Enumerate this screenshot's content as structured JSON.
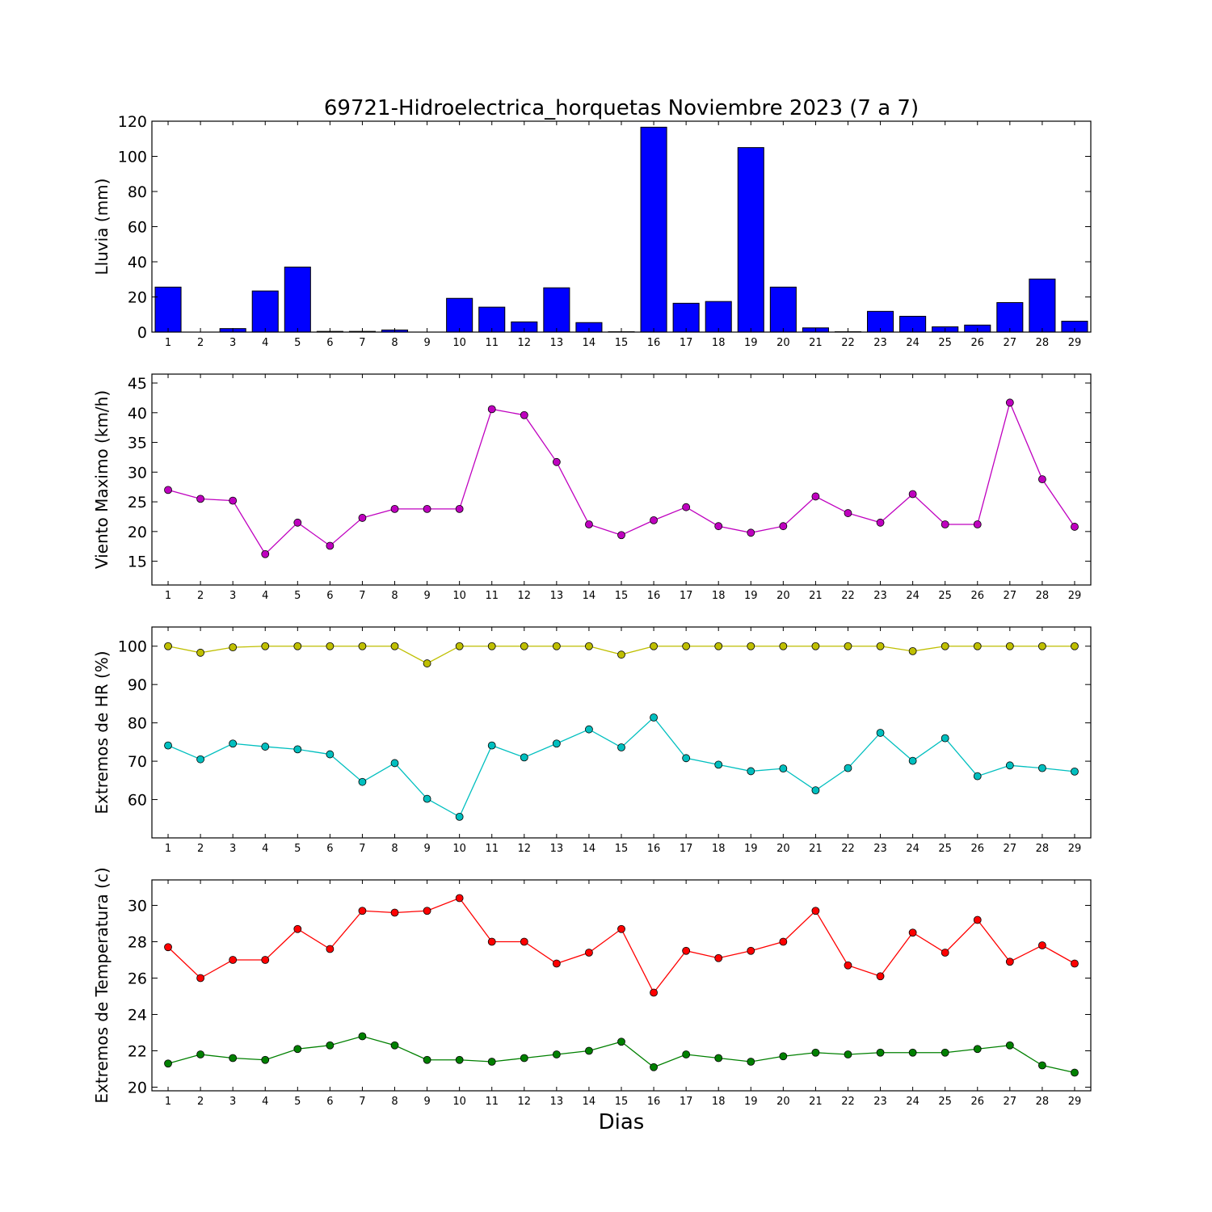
{
  "figure": {
    "title": "69721-Hidroelectrica_horquetas Noviembre 2023  (7 a 7)",
    "xlabel": "Dias"
  },
  "chart_data": [
    {
      "id": "lluvia",
      "type": "bar",
      "ylabel": "Lluvia (mm)",
      "ylim": [
        0,
        120
      ],
      "yticks": [
        0,
        20,
        40,
        60,
        80,
        100,
        120
      ],
      "x": [
        1,
        2,
        3,
        4,
        5,
        6,
        7,
        8,
        9,
        10,
        11,
        12,
        13,
        14,
        15,
        16,
        17,
        18,
        19,
        20,
        21,
        22,
        23,
        24,
        25,
        26,
        27,
        28,
        29
      ],
      "series": [
        {
          "color": "#0000ff",
          "values": [
            25.6,
            0,
            2,
            23.4,
            37,
            0.4,
            0.4,
            1.2,
            0,
            19.2,
            14.2,
            5.8,
            25.2,
            5.4,
            0.2,
            116.6,
            16.4,
            17.4,
            105,
            25.6,
            2.4,
            0.2,
            11.8,
            9,
            3,
            4,
            16.8,
            30.2,
            6.2
          ]
        }
      ]
    },
    {
      "id": "viento",
      "type": "line",
      "ylabel": "Viento Maximo (km/h)",
      "ylim": [
        11,
        46.5
      ],
      "yticks": [
        15,
        20,
        25,
        30,
        35,
        40,
        45
      ],
      "x": [
        1,
        2,
        3,
        4,
        5,
        6,
        7,
        8,
        9,
        10,
        11,
        12,
        13,
        14,
        15,
        16,
        17,
        18,
        19,
        20,
        21,
        22,
        23,
        24,
        25,
        26,
        27,
        28,
        29
      ],
      "series": [
        {
          "color": "#bf00bf",
          "values": [
            27,
            25.5,
            25.2,
            16.2,
            21.5,
            17.6,
            22.3,
            23.8,
            23.8,
            23.8,
            40.6,
            39.6,
            31.7,
            21.2,
            19.4,
            21.9,
            24.1,
            20.9,
            19.8,
            20.9,
            25.9,
            23.1,
            21.5,
            26.3,
            21.2,
            21.2,
            41.7,
            28.8,
            20.8
          ]
        }
      ]
    },
    {
      "id": "humedad",
      "type": "line",
      "ylabel": "Extremos de HR (%)",
      "ylim": [
        50,
        105
      ],
      "yticks": [
        60,
        70,
        80,
        90,
        100
      ],
      "x": [
        1,
        2,
        3,
        4,
        5,
        6,
        7,
        8,
        9,
        10,
        11,
        12,
        13,
        14,
        15,
        16,
        17,
        18,
        19,
        20,
        21,
        22,
        23,
        24,
        25,
        26,
        27,
        28,
        29
      ],
      "series": [
        {
          "color": "#bfbf00",
          "values": [
            100,
            98.3,
            99.7,
            100,
            100,
            100,
            100,
            100,
            95.5,
            100,
            100,
            100,
            100,
            100,
            97.8,
            100,
            100,
            100,
            100,
            100,
            100,
            100,
            100,
            98.7,
            100,
            100,
            100,
            100,
            100
          ]
        },
        {
          "color": "#00bfbf",
          "values": [
            74.1,
            70.5,
            74.6,
            73.8,
            73.1,
            71.8,
            64.6,
            69.5,
            60.2,
            55.5,
            74.1,
            71,
            74.6,
            78.3,
            73.6,
            81.4,
            70.8,
            69.1,
            67.4,
            68.1,
            62.4,
            68.2,
            77.4,
            70.1,
            76,
            66.1,
            68.9,
            68.2,
            67.3
          ]
        }
      ]
    },
    {
      "id": "temperatura",
      "type": "line",
      "ylabel": "Extremos de Temperatura (c)",
      "ylim": [
        19.8,
        31.4
      ],
      "yticks": [
        20,
        22,
        24,
        26,
        28,
        30
      ],
      "x": [
        1,
        2,
        3,
        4,
        5,
        6,
        7,
        8,
        9,
        10,
        11,
        12,
        13,
        14,
        15,
        16,
        17,
        18,
        19,
        20,
        21,
        22,
        23,
        24,
        25,
        26,
        27,
        28,
        29
      ],
      "series": [
        {
          "color": "#ff0000",
          "values": [
            27.7,
            26,
            27,
            27,
            28.7,
            27.6,
            29.7,
            29.6,
            29.7,
            30.4,
            28,
            28,
            26.8,
            27.4,
            28.7,
            25.2,
            27.5,
            27.1,
            27.5,
            28,
            29.7,
            26.7,
            26.1,
            28.5,
            27.4,
            29.2,
            26.9,
            27.8,
            26.8
          ]
        },
        {
          "color": "#008000",
          "values": [
            21.3,
            21.8,
            21.6,
            21.5,
            22.1,
            22.3,
            22.8,
            22.3,
            21.5,
            21.5,
            21.4,
            21.6,
            21.8,
            22,
            22.5,
            21.1,
            21.8,
            21.6,
            21.4,
            21.7,
            21.9,
            21.8,
            21.9,
            21.9,
            21.9,
            22.1,
            22.3,
            21.2,
            20.8
          ]
        }
      ]
    }
  ]
}
